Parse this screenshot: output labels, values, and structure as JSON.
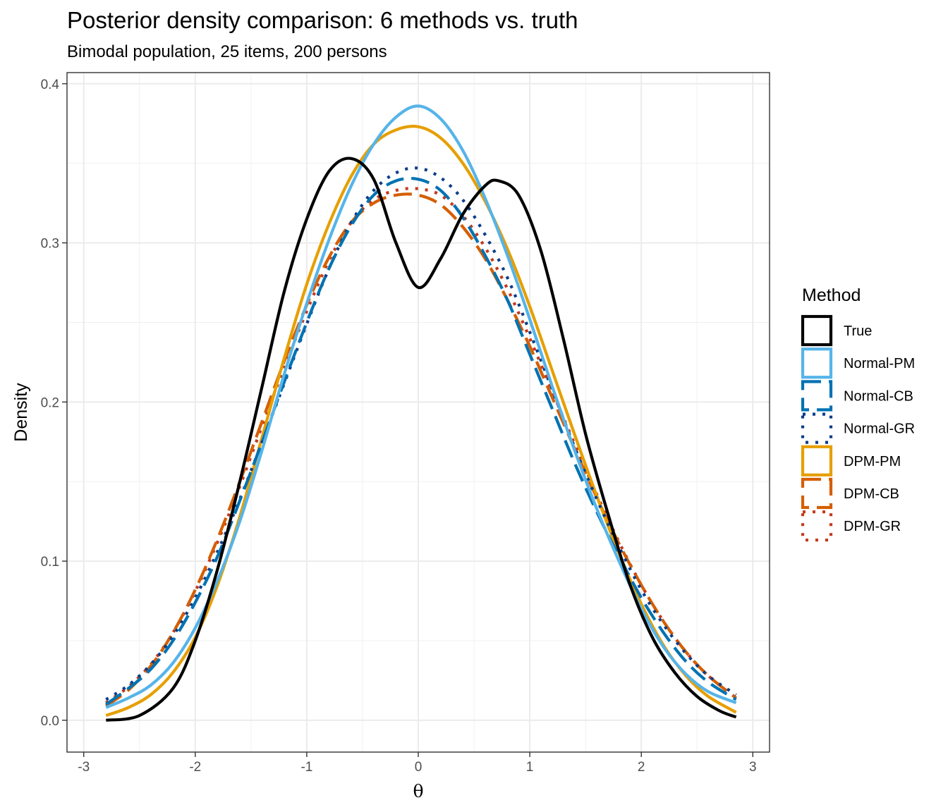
{
  "chart_data": {
    "type": "line",
    "title": "Posterior density comparison: 6 methods vs. truth",
    "subtitle": "Bimodal population, 25 items, 200 persons",
    "xlabel": "θ",
    "ylabel": "Density",
    "xlim": [
      -3.15,
      3.15
    ],
    "ylim": [
      -0.02,
      0.407
    ],
    "x_ticks": [
      -3,
      -2,
      -1,
      0,
      1,
      2,
      3
    ],
    "x_tick_labels": [
      "-3",
      "-2",
      "-1",
      "0",
      "1",
      "2",
      "3"
    ],
    "y_ticks": [
      0.0,
      0.1,
      0.2,
      0.3,
      0.4
    ],
    "y_tick_labels": [
      "0.0",
      "0.1",
      "0.2",
      "0.3",
      "0.4"
    ],
    "grid": true,
    "legend": {
      "title": "Method",
      "position": "right"
    },
    "series": [
      {
        "name": "True",
        "color": "#000000",
        "dash": "solid",
        "points": [
          [
            -2.8,
            0.0
          ],
          [
            -2.5,
            0.003
          ],
          [
            -2.2,
            0.02
          ],
          [
            -2.0,
            0.05
          ],
          [
            -1.8,
            0.095
          ],
          [
            -1.6,
            0.15
          ],
          [
            -1.4,
            0.21
          ],
          [
            -1.2,
            0.27
          ],
          [
            -1.0,
            0.315
          ],
          [
            -0.8,
            0.345
          ],
          [
            -0.6,
            0.353
          ],
          [
            -0.4,
            0.34
          ],
          [
            -0.2,
            0.3
          ],
          [
            0.0,
            0.272
          ],
          [
            0.2,
            0.29
          ],
          [
            0.4,
            0.318
          ],
          [
            0.6,
            0.336
          ],
          [
            0.72,
            0.339
          ],
          [
            0.9,
            0.33
          ],
          [
            1.1,
            0.295
          ],
          [
            1.3,
            0.24
          ],
          [
            1.5,
            0.18
          ],
          [
            1.7,
            0.13
          ],
          [
            1.9,
            0.085
          ],
          [
            2.1,
            0.052
          ],
          [
            2.3,
            0.03
          ],
          [
            2.5,
            0.015
          ],
          [
            2.7,
            0.006
          ],
          [
            2.85,
            0.002
          ]
        ]
      },
      {
        "name": "Normal-PM",
        "color": "#56b4e9",
        "dash": "solid",
        "points": [
          [
            -2.8,
            0.008
          ],
          [
            -2.6,
            0.014
          ],
          [
            -2.4,
            0.022
          ],
          [
            -2.2,
            0.036
          ],
          [
            -2.0,
            0.058
          ],
          [
            -1.8,
            0.088
          ],
          [
            -1.6,
            0.125
          ],
          [
            -1.4,
            0.17
          ],
          [
            -1.2,
            0.218
          ],
          [
            -1.0,
            0.262
          ],
          [
            -0.8,
            0.302
          ],
          [
            -0.6,
            0.336
          ],
          [
            -0.4,
            0.362
          ],
          [
            -0.2,
            0.379
          ],
          [
            0.0,
            0.386
          ],
          [
            0.2,
            0.378
          ],
          [
            0.4,
            0.358
          ],
          [
            0.6,
            0.328
          ],
          [
            0.8,
            0.292
          ],
          [
            1.0,
            0.252
          ],
          [
            1.2,
            0.21
          ],
          [
            1.4,
            0.17
          ],
          [
            1.6,
            0.133
          ],
          [
            1.8,
            0.1
          ],
          [
            2.0,
            0.07
          ],
          [
            2.2,
            0.046
          ],
          [
            2.4,
            0.029
          ],
          [
            2.6,
            0.018
          ],
          [
            2.85,
            0.011
          ]
        ]
      },
      {
        "name": "Normal-CB",
        "color": "#0072b2",
        "dash": "longdash",
        "points": [
          [
            -2.8,
            0.01
          ],
          [
            -2.6,
            0.02
          ],
          [
            -2.4,
            0.032
          ],
          [
            -2.2,
            0.05
          ],
          [
            -2.0,
            0.074
          ],
          [
            -1.8,
            0.103
          ],
          [
            -1.6,
            0.138
          ],
          [
            -1.4,
            0.175
          ],
          [
            -1.2,
            0.213
          ],
          [
            -1.0,
            0.25
          ],
          [
            -0.8,
            0.284
          ],
          [
            -0.6,
            0.311
          ],
          [
            -0.4,
            0.33
          ],
          [
            -0.2,
            0.339
          ],
          [
            0.0,
            0.34
          ],
          [
            0.2,
            0.333
          ],
          [
            0.4,
            0.316
          ],
          [
            0.6,
            0.292
          ],
          [
            0.8,
            0.264
          ],
          [
            1.0,
            0.23
          ],
          [
            1.2,
            0.196
          ],
          [
            1.4,
            0.162
          ],
          [
            1.6,
            0.131
          ],
          [
            1.8,
            0.103
          ],
          [
            2.0,
            0.077
          ],
          [
            2.2,
            0.055
          ],
          [
            2.4,
            0.037
          ],
          [
            2.6,
            0.024
          ],
          [
            2.85,
            0.013
          ]
        ]
      },
      {
        "name": "Normal-GR",
        "color": "#0a3d8a",
        "dash": "dotted",
        "points": [
          [
            -2.8,
            0.013
          ],
          [
            -2.6,
            0.022
          ],
          [
            -2.4,
            0.035
          ],
          [
            -2.2,
            0.053
          ],
          [
            -2.0,
            0.077
          ],
          [
            -1.8,
            0.106
          ],
          [
            -1.6,
            0.139
          ],
          [
            -1.4,
            0.175
          ],
          [
            -1.2,
            0.212
          ],
          [
            -1.0,
            0.249
          ],
          [
            -0.8,
            0.284
          ],
          [
            -0.6,
            0.313
          ],
          [
            -0.4,
            0.333
          ],
          [
            -0.2,
            0.344
          ],
          [
            0.0,
            0.347
          ],
          [
            0.2,
            0.341
          ],
          [
            0.4,
            0.327
          ],
          [
            0.6,
            0.305
          ],
          [
            0.8,
            0.278
          ],
          [
            1.0,
            0.244
          ],
          [
            1.2,
            0.208
          ],
          [
            1.4,
            0.172
          ],
          [
            1.6,
            0.139
          ],
          [
            1.8,
            0.109
          ],
          [
            2.0,
            0.082
          ],
          [
            2.2,
            0.06
          ],
          [
            2.4,
            0.042
          ],
          [
            2.6,
            0.028
          ],
          [
            2.85,
            0.016
          ]
        ]
      },
      {
        "name": "DPM-PM",
        "color": "#e69f00",
        "dash": "solid",
        "points": [
          [
            -2.8,
            0.003
          ],
          [
            -2.6,
            0.008
          ],
          [
            -2.4,
            0.016
          ],
          [
            -2.2,
            0.03
          ],
          [
            -2.0,
            0.052
          ],
          [
            -1.8,
            0.085
          ],
          [
            -1.6,
            0.128
          ],
          [
            -1.4,
            0.178
          ],
          [
            -1.2,
            0.228
          ],
          [
            -1.0,
            0.274
          ],
          [
            -0.8,
            0.312
          ],
          [
            -0.6,
            0.342
          ],
          [
            -0.4,
            0.362
          ],
          [
            -0.2,
            0.371
          ],
          [
            0.0,
            0.373
          ],
          [
            0.2,
            0.366
          ],
          [
            0.4,
            0.35
          ],
          [
            0.6,
            0.326
          ],
          [
            0.8,
            0.296
          ],
          [
            1.0,
            0.26
          ],
          [
            1.2,
            0.22
          ],
          [
            1.4,
            0.18
          ],
          [
            1.6,
            0.141
          ],
          [
            1.8,
            0.105
          ],
          [
            2.0,
            0.073
          ],
          [
            2.2,
            0.047
          ],
          [
            2.4,
            0.028
          ],
          [
            2.6,
            0.015
          ],
          [
            2.85,
            0.005
          ]
        ]
      },
      {
        "name": "DPM-CB",
        "color": "#d55e00",
        "dash": "longdash",
        "points": [
          [
            -2.8,
            0.009
          ],
          [
            -2.6,
            0.019
          ],
          [
            -2.4,
            0.034
          ],
          [
            -2.2,
            0.055
          ],
          [
            -2.0,
            0.082
          ],
          [
            -1.8,
            0.114
          ],
          [
            -1.6,
            0.15
          ],
          [
            -1.4,
            0.188
          ],
          [
            -1.2,
            0.226
          ],
          [
            -1.0,
            0.261
          ],
          [
            -0.8,
            0.291
          ],
          [
            -0.6,
            0.313
          ],
          [
            -0.4,
            0.325
          ],
          [
            -0.2,
            0.33
          ],
          [
            0.0,
            0.33
          ],
          [
            0.2,
            0.324
          ],
          [
            0.4,
            0.31
          ],
          [
            0.6,
            0.29
          ],
          [
            0.8,
            0.264
          ],
          [
            1.0,
            0.235
          ],
          [
            1.2,
            0.203
          ],
          [
            1.4,
            0.171
          ],
          [
            1.6,
            0.14
          ],
          [
            1.8,
            0.111
          ],
          [
            2.0,
            0.085
          ],
          [
            2.2,
            0.062
          ],
          [
            2.4,
            0.043
          ],
          [
            2.6,
            0.028
          ],
          [
            2.85,
            0.014
          ]
        ]
      },
      {
        "name": "DPM-GR",
        "color": "#c4391c",
        "dash": "dotted",
        "points": [
          [
            -2.8,
            0.011
          ],
          [
            -2.6,
            0.021
          ],
          [
            -2.4,
            0.035
          ],
          [
            -2.2,
            0.055
          ],
          [
            -2.0,
            0.081
          ],
          [
            -1.8,
            0.112
          ],
          [
            -1.6,
            0.147
          ],
          [
            -1.4,
            0.185
          ],
          [
            -1.2,
            0.222
          ],
          [
            -1.0,
            0.257
          ],
          [
            -0.8,
            0.289
          ],
          [
            -0.6,
            0.313
          ],
          [
            -0.4,
            0.327
          ],
          [
            -0.2,
            0.333
          ],
          [
            0.0,
            0.334
          ],
          [
            0.2,
            0.33
          ],
          [
            0.4,
            0.317
          ],
          [
            0.6,
            0.297
          ],
          [
            0.8,
            0.271
          ],
          [
            1.0,
            0.24
          ],
          [
            1.2,
            0.207
          ],
          [
            1.4,
            0.174
          ],
          [
            1.6,
            0.142
          ],
          [
            1.8,
            0.112
          ],
          [
            2.0,
            0.085
          ],
          [
            2.2,
            0.062
          ],
          [
            2.4,
            0.043
          ],
          [
            2.6,
            0.028
          ],
          [
            2.85,
            0.014
          ]
        ]
      }
    ]
  }
}
